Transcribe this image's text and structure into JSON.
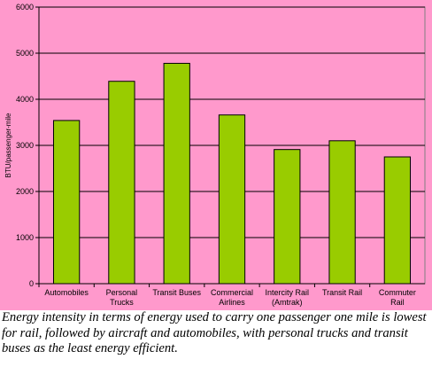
{
  "chart_data": {
    "type": "bar",
    "categories": [
      [
        "Automobiles"
      ],
      [
        "Personal",
        "Trucks"
      ],
      [
        "Transit Buses"
      ],
      [
        "Commercial",
        "Airlines"
      ],
      [
        "Intercity Rail",
        "(Amtrak)"
      ],
      [
        "Transit Rail"
      ],
      [
        "Commuter",
        "Rail"
      ]
    ],
    "values": [
      3540,
      4390,
      4780,
      3660,
      2910,
      3100,
      2750
    ],
    "ylabel": "BTU/passenger-mile",
    "ylim": [
      0,
      6000
    ],
    "yticks": [
      0,
      1000,
      2000,
      3000,
      4000,
      5000,
      6000
    ],
    "grid": true,
    "colors": {
      "bar": "#99cc00",
      "bar_edge": "#000000",
      "plot_bg": "#ff99cc",
      "grid": "#000000"
    }
  },
  "caption": "Energy intensity in terms of energy used to carry one passenger one mile is lowest for rail, followed by aircraft and automobiles, with personal trucks and transit buses as the least energy efficient."
}
